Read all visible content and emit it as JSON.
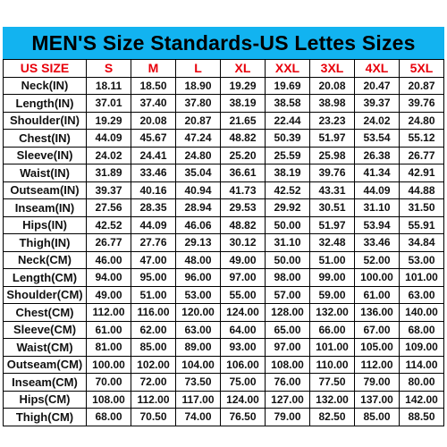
{
  "title": "MEN'S Size Standards-US Lettes Sizes",
  "colors": {
    "banner": "#12b3f0",
    "header_text": "#e8000b"
  },
  "headers": [
    "US SIZE",
    "S",
    "M",
    "L",
    "XL",
    "XXL",
    "3XL",
    "4XL",
    "5XL"
  ],
  "rows": [
    [
      "Neck(IN)",
      "18.11",
      "18.50",
      "18.90",
      "19.29",
      "19.69",
      "20.08",
      "20.47",
      "20.87"
    ],
    [
      "Length(IN)",
      "37.01",
      "37.40",
      "37.80",
      "38.19",
      "38.58",
      "38.98",
      "39.37",
      "39.76"
    ],
    [
      "Shoulder(IN)",
      "19.29",
      "20.08",
      "20.87",
      "21.65",
      "22.44",
      "23.23",
      "24.02",
      "24.80"
    ],
    [
      "Chest(IN)",
      "44.09",
      "45.67",
      "47.24",
      "48.82",
      "50.39",
      "51.97",
      "53.54",
      "55.12"
    ],
    [
      "Sleeve(IN)",
      "24.02",
      "24.41",
      "24.80",
      "25.20",
      "25.59",
      "25.98",
      "26.38",
      "26.77"
    ],
    [
      "Waist(IN)",
      "31.89",
      "33.46",
      "35.04",
      "36.61",
      "38.19",
      "39.76",
      "41.34",
      "42.91"
    ],
    [
      "Outseam(IN)",
      "39.37",
      "40.16",
      "40.94",
      "41.73",
      "42.52",
      "43.31",
      "44.09",
      "44.88"
    ],
    [
      "Inseam(IN)",
      "27.56",
      "28.35",
      "28.94",
      "29.53",
      "29.92",
      "30.51",
      "31.10",
      "31.50"
    ],
    [
      "Hips(IN)",
      "42.52",
      "44.09",
      "46.06",
      "48.82",
      "50.00",
      "51.97",
      "53.94",
      "55.91"
    ],
    [
      "Thigh(IN)",
      "26.77",
      "27.76",
      "29.13",
      "30.12",
      "31.10",
      "32.48",
      "33.46",
      "34.84"
    ],
    [
      "Neck(CM)",
      "46.00",
      "47.00",
      "48.00",
      "49.00",
      "50.00",
      "51.00",
      "52.00",
      "53.00"
    ],
    [
      "Length(CM)",
      "94.00",
      "95.00",
      "96.00",
      "97.00",
      "98.00",
      "99.00",
      "100.00",
      "101.00"
    ],
    [
      "Shoulder(CM)",
      "49.00",
      "51.00",
      "53.00",
      "55.00",
      "57.00",
      "59.00",
      "61.00",
      "63.00"
    ],
    [
      "Chest(CM)",
      "112.00",
      "116.00",
      "120.00",
      "124.00",
      "128.00",
      "132.00",
      "136.00",
      "140.00"
    ],
    [
      "Sleeve(CM)",
      "61.00",
      "62.00",
      "63.00",
      "64.00",
      "65.00",
      "66.00",
      "67.00",
      "68.00"
    ],
    [
      "Waist(CM)",
      "81.00",
      "85.00",
      "89.00",
      "93.00",
      "97.00",
      "101.00",
      "105.00",
      "109.00"
    ],
    [
      "Outseam(CM)",
      "100.00",
      "102.00",
      "104.00",
      "106.00",
      "108.00",
      "110.00",
      "112.00",
      "114.00"
    ],
    [
      "Inseam(CM)",
      "70.00",
      "72.00",
      "73.50",
      "75.00",
      "76.00",
      "77.50",
      "79.00",
      "80.00"
    ],
    [
      "Hips(CM)",
      "108.00",
      "112.00",
      "117.00",
      "124.00",
      "127.00",
      "132.00",
      "137.00",
      "142.00"
    ],
    [
      "Thigh(CM)",
      "68.00",
      "70.50",
      "74.00",
      "76.50",
      "79.00",
      "82.50",
      "85.00",
      "88.50"
    ]
  ]
}
